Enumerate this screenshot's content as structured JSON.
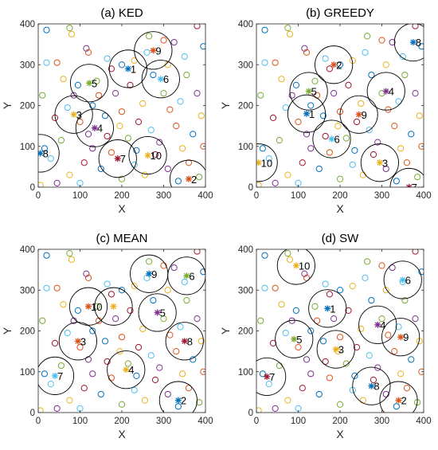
{
  "chart_data": [
    {
      "type": "scatter",
      "title": "(a) KED",
      "xlabel": "X",
      "ylabel": "Y",
      "xlim": [
        0,
        400
      ],
      "ylim": [
        0,
        400
      ],
      "xticks": [
        "0",
        "100",
        "200",
        "300",
        "400"
      ],
      "yticks": [
        "0",
        "100",
        "200",
        "300",
        "400"
      ],
      "grid": false,
      "clusters": [
        {
          "label": "1",
          "x": 215,
          "y": 290,
          "r": 45
        },
        {
          "label": "2",
          "x": 360,
          "y": 20,
          "r": 45
        },
        {
          "label": "3",
          "x": 85,
          "y": 178,
          "r": 45
        },
        {
          "label": "4",
          "x": 135,
          "y": 145,
          "r": 45
        },
        {
          "label": "5",
          "x": 122,
          "y": 255,
          "r": 45
        },
        {
          "label": "6",
          "x": 293,
          "y": 265,
          "r": 45
        },
        {
          "label": "7",
          "x": 190,
          "y": 70,
          "r": 45
        },
        {
          "label": "8",
          "x": 5,
          "y": 83,
          "r": 45
        },
        {
          "label": "9",
          "x": 275,
          "y": 335,
          "r": 45
        },
        {
          "label": "10",
          "x": 262,
          "y": 78,
          "r": 45
        }
      ]
    },
    {
      "type": "scatter",
      "title": "(b) GREEDY",
      "xlabel": "X",
      "ylabel": "Y",
      "xlim": [
        0,
        400
      ],
      "ylim": [
        0,
        400
      ],
      "xticks": [
        "0",
        "100",
        "200",
        "300",
        "400"
      ],
      "yticks": [
        "0",
        "100",
        "200",
        "300",
        "400"
      ],
      "grid": false,
      "clusters": [
        {
          "label": "1",
          "x": 120,
          "y": 180,
          "r": 45
        },
        {
          "label": "2",
          "x": 185,
          "y": 300,
          "r": 45
        },
        {
          "label": "3",
          "x": 295,
          "y": 60,
          "r": 45
        },
        {
          "label": "4",
          "x": 310,
          "y": 235,
          "r": 45
        },
        {
          "label": "5",
          "x": 125,
          "y": 235,
          "r": 45
        },
        {
          "label": "6",
          "x": 180,
          "y": 118,
          "r": 45
        },
        {
          "label": "7",
          "x": 365,
          "y": 0,
          "r": 45
        },
        {
          "label": "8",
          "x": 375,
          "y": 355,
          "r": 45
        },
        {
          "label": "9",
          "x": 245,
          "y": 178,
          "r": 45
        },
        {
          "label": "10",
          "x": 5,
          "y": 60,
          "r": 45
        }
      ]
    },
    {
      "type": "scatter",
      "title": "(c) MEAN",
      "xlabel": "X",
      "ylabel": "Y",
      "xlim": [
        0,
        400
      ],
      "ylim": [
        0,
        400
      ],
      "xticks": [
        "0",
        "100",
        "200",
        "300",
        "400"
      ],
      "yticks": [
        "0",
        "100",
        "200",
        "300",
        "400"
      ],
      "grid": false,
      "clusters": [
        {
          "label": "2",
          "x": 335,
          "y": 30,
          "r": 45
        },
        {
          "label": "3",
          "x": 95,
          "y": 175,
          "r": 45
        },
        {
          "label": "4",
          "x": 210,
          "y": 105,
          "r": 45
        },
        {
          "label": "5",
          "x": 285,
          "y": 245,
          "r": 45
        },
        {
          "label": "6",
          "x": 355,
          "y": 335,
          "r": 45
        },
        {
          "label": "7",
          "x": 40,
          "y": 90,
          "r": 45
        },
        {
          "label": "8",
          "x": 350,
          "y": 175,
          "r": 45
        },
        {
          "label": "9",
          "x": 265,
          "y": 340,
          "r": 45
        },
        {
          "label": "10",
          "x": 120,
          "y": 260,
          "r": 45
        },
        {
          "label": "",
          "x": 180,
          "y": 260,
          "r": 45
        }
      ]
    },
    {
      "type": "scatter",
      "title": "(d) SW",
      "xlabel": "X",
      "ylabel": "Y",
      "xlim": [
        0,
        400
      ],
      "ylim": [
        0,
        400
      ],
      "xticks": [
        "0",
        "100",
        "200",
        "300",
        "400"
      ],
      "yticks": [
        "0",
        "100",
        "200",
        "300",
        "400"
      ],
      "grid": false,
      "clusters": [
        {
          "label": "1",
          "x": 170,
          "y": 255,
          "r": 45
        },
        {
          "label": "2",
          "x": 340,
          "y": 30,
          "r": 45
        },
        {
          "label": "3",
          "x": 190,
          "y": 155,
          "r": 45
        },
        {
          "label": "4",
          "x": 290,
          "y": 215,
          "r": 45
        },
        {
          "label": "5",
          "x": 90,
          "y": 180,
          "r": 45
        },
        {
          "label": "6",
          "x": 350,
          "y": 325,
          "r": 45
        },
        {
          "label": "7",
          "x": 25,
          "y": 88,
          "r": 45
        },
        {
          "label": "8",
          "x": 275,
          "y": 65,
          "r": 45
        },
        {
          "label": "9",
          "x": 345,
          "y": 185,
          "r": 45
        },
        {
          "label": "10",
          "x": 95,
          "y": 360,
          "r": 45
        }
      ]
    }
  ],
  "points": [
    {
      "x": 20,
      "y": 385,
      "c": "#0072BD"
    },
    {
      "x": 75,
      "y": 390,
      "c": "#77AC30"
    },
    {
      "x": 80,
      "y": 375,
      "c": "#EDB120"
    },
    {
      "x": 115,
      "y": 340,
      "c": "#7E2F8E"
    },
    {
      "x": 120,
      "y": 330,
      "c": "#D95319"
    },
    {
      "x": 165,
      "y": 315,
      "c": "#4DBEEE"
    },
    {
      "x": 175,
      "y": 290,
      "c": "#A2142F"
    },
    {
      "x": 200,
      "y": 300,
      "c": "#0072BD"
    },
    {
      "x": 230,
      "y": 310,
      "c": "#EDB120"
    },
    {
      "x": 265,
      "y": 370,
      "c": "#77AC30"
    },
    {
      "x": 300,
      "y": 360,
      "c": "#D95319"
    },
    {
      "x": 325,
      "y": 355,
      "c": "#7E2F8E"
    },
    {
      "x": 350,
      "y": 320,
      "c": "#4DBEEE"
    },
    {
      "x": 380,
      "y": 395,
      "c": "#A2142F"
    },
    {
      "x": 395,
      "y": 345,
      "c": "#0072BD"
    },
    {
      "x": 20,
      "y": 305,
      "c": "#4DBEEE"
    },
    {
      "x": 60,
      "y": 265,
      "c": "#EDB120"
    },
    {
      "x": 95,
      "y": 250,
      "c": "#0072BD"
    },
    {
      "x": 140,
      "y": 260,
      "c": "#77AC30"
    },
    {
      "x": 145,
      "y": 225,
      "c": "#D95319"
    },
    {
      "x": 185,
      "y": 230,
      "c": "#7E2F8E"
    },
    {
      "x": 220,
      "y": 250,
      "c": "#A2142F"
    },
    {
      "x": 250,
      "y": 205,
      "c": "#EDB120"
    },
    {
      "x": 275,
      "y": 275,
      "c": "#0072BD"
    },
    {
      "x": 300,
      "y": 230,
      "c": "#77AC30"
    },
    {
      "x": 315,
      "y": 190,
      "c": "#D95319"
    },
    {
      "x": 340,
      "y": 210,
      "c": "#4DBEEE"
    },
    {
      "x": 380,
      "y": 230,
      "c": "#7E2F8E"
    },
    {
      "x": 390,
      "y": 175,
      "c": "#EDB120"
    },
    {
      "x": 10,
      "y": 225,
      "c": "#77AC30"
    },
    {
      "x": 40,
      "y": 170,
      "c": "#A2142F"
    },
    {
      "x": 70,
      "y": 195,
      "c": "#4DBEEE"
    },
    {
      "x": 100,
      "y": 160,
      "c": "#D95319"
    },
    {
      "x": 120,
      "y": 130,
      "c": "#7E2F8E"
    },
    {
      "x": 160,
      "y": 175,
      "c": "#0072BD"
    },
    {
      "x": 195,
      "y": 150,
      "c": "#EDB120"
    },
    {
      "x": 215,
      "y": 120,
      "c": "#77AC30"
    },
    {
      "x": 240,
      "y": 160,
      "c": "#A2142F"
    },
    {
      "x": 270,
      "y": 140,
      "c": "#4DBEEE"
    },
    {
      "x": 290,
      "y": 110,
      "c": "#7E2F8E"
    },
    {
      "x": 330,
      "y": 150,
      "c": "#D95319"
    },
    {
      "x": 370,
      "y": 130,
      "c": "#0072BD"
    },
    {
      "x": 395,
      "y": 100,
      "c": "#D95319"
    },
    {
      "x": 15,
      "y": 95,
      "c": "#0072BD"
    },
    {
      "x": 30,
      "y": 70,
      "c": "#4DBEEE"
    },
    {
      "x": 55,
      "y": 115,
      "c": "#77AC30"
    },
    {
      "x": 75,
      "y": 30,
      "c": "#EDB120"
    },
    {
      "x": 110,
      "y": 60,
      "c": "#A2142F"
    },
    {
      "x": 130,
      "y": 95,
      "c": "#7E2F8E"
    },
    {
      "x": 150,
      "y": 45,
      "c": "#0072BD"
    },
    {
      "x": 175,
      "y": 85,
      "c": "#D95319"
    },
    {
      "x": 200,
      "y": 20,
      "c": "#77AC30"
    },
    {
      "x": 230,
      "y": 55,
      "c": "#4DBEEE"
    },
    {
      "x": 255,
      "y": 30,
      "c": "#EDB120"
    },
    {
      "x": 280,
      "y": 80,
      "c": "#A2142F"
    },
    {
      "x": 310,
      "y": 45,
      "c": "#7E2F8E"
    },
    {
      "x": 335,
      "y": 15,
      "c": "#0072BD"
    },
    {
      "x": 360,
      "y": 60,
      "c": "#D95319"
    },
    {
      "x": 385,
      "y": 25,
      "c": "#77AC30"
    },
    {
      "x": 5,
      "y": 5,
      "c": "#EDB120"
    },
    {
      "x": 45,
      "y": 10,
      "c": "#7E2F8E"
    },
    {
      "x": 100,
      "y": 10,
      "c": "#4DBEEE"
    },
    {
      "x": 165,
      "y": 125,
      "c": "#A2142F"
    },
    {
      "x": 235,
      "y": 90,
      "c": "#0072BD"
    },
    {
      "x": 310,
      "y": 300,
      "c": "#EDB120"
    },
    {
      "x": 355,
      "y": 275,
      "c": "#77AC30"
    },
    {
      "x": 45,
      "y": 305,
      "c": "#D95319"
    },
    {
      "x": 85,
      "y": 225,
      "c": "#7E2F8E"
    },
    {
      "x": 260,
      "y": 330,
      "c": "#4DBEEE"
    },
    {
      "x": 200,
      "y": 185,
      "c": "#D95319"
    },
    {
      "x": 130,
      "y": 200,
      "c": "#0072BD"
    },
    {
      "x": 345,
      "y": 95,
      "c": "#EDB120"
    }
  ]
}
